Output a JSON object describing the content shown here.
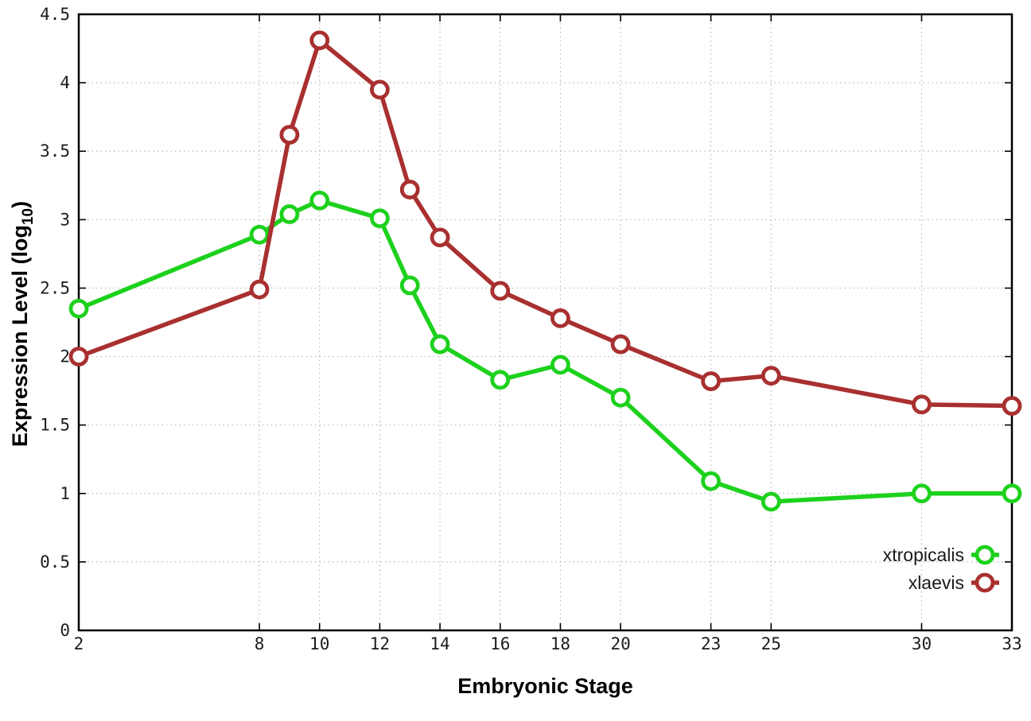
{
  "chart_data": {
    "type": "line",
    "title": "",
    "xlabel": "Embryonic Stage",
    "ylabel": "Expression Level (log10)",
    "ylabel_parts": {
      "pre": "Expression Level (log",
      "sub": "10",
      "post": ")"
    },
    "xlim": [
      2,
      33
    ],
    "ylim": [
      0,
      4.5
    ],
    "grid": true,
    "legend_position": "inside-bottom-right",
    "x": [
      2,
      8,
      9,
      10,
      12,
      13,
      14,
      16,
      18,
      20,
      23,
      25,
      30,
      33
    ],
    "xticks": [
      2,
      8,
      10,
      12,
      14,
      16,
      18,
      20,
      23,
      25,
      30,
      33
    ],
    "xtick_labels": [
      "2",
      "8",
      "10",
      "12",
      "14",
      "16",
      "18",
      "20",
      "23",
      "25",
      "30",
      "33"
    ],
    "yticks": [
      0,
      0.5,
      1,
      1.5,
      2,
      2.5,
      3,
      3.5,
      4,
      4.5
    ],
    "ytick_labels": [
      "0",
      "0.5",
      "1",
      "1.5",
      "2",
      "2.5",
      "3",
      "3.5",
      "4",
      "4.5"
    ],
    "series": [
      {
        "name": "xtropicalis",
        "color": "#1dd11d",
        "values": [
          2.35,
          2.89,
          3.04,
          3.14,
          3.01,
          2.52,
          2.09,
          1.83,
          1.94,
          1.7,
          1.09,
          0.94,
          1.0,
          1.0
        ]
      },
      {
        "name": "xlaevis",
        "color": "#a93030",
        "values": [
          2.0,
          2.49,
          3.62,
          4.31,
          3.95,
          3.22,
          2.87,
          2.48,
          2.28,
          2.09,
          1.82,
          1.86,
          1.65,
          1.64
        ]
      }
    ],
    "colors": {
      "grid": "#b8b8b8",
      "border": "#000000",
      "marker_fill": "#ffffff",
      "tick_text": "#1c1c1c"
    }
  }
}
